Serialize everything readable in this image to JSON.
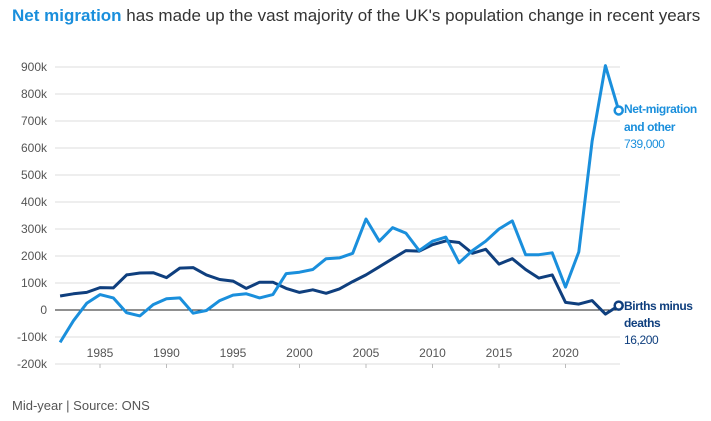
{
  "title": {
    "highlight": "Net migration",
    "rest": " has made up the vast majority of the UK's population change in recent years"
  },
  "footer": "Mid-year | Source: ONS",
  "colors": {
    "net_migration": "#1a8fdc",
    "births_minus_deaths": "#0f3f7e",
    "grid": "#dddddd",
    "zero": "#222222"
  },
  "chart_data": {
    "type": "line",
    "title": "",
    "xlabel": "",
    "ylabel": "",
    "xlim": [
      1982,
      2024
    ],
    "ylim": [
      -200000,
      900000
    ],
    "grid": true,
    "y_ticks": [
      -200000,
      -100000,
      0,
      100000,
      200000,
      300000,
      400000,
      500000,
      600000,
      700000,
      800000,
      900000
    ],
    "y_tick_labels": [
      "-200k",
      "-100k",
      "0",
      "100k",
      "200k",
      "300k",
      "400k",
      "500k",
      "600k",
      "700k",
      "800k",
      "900k"
    ],
    "x_ticks": [
      1985,
      1990,
      1995,
      2000,
      2005,
      2010,
      2015,
      2020
    ],
    "x_tick_labels": [
      "1985",
      "1990",
      "1995",
      "2000",
      "2005",
      "2010",
      "2015",
      "2020"
    ],
    "x": [
      1982,
      1983,
      1984,
      1985,
      1986,
      1987,
      1988,
      1989,
      1990,
      1991,
      1992,
      1993,
      1994,
      1995,
      1996,
      1997,
      1998,
      1999,
      2000,
      2001,
      2002,
      2003,
      2004,
      2005,
      2006,
      2007,
      2008,
      2009,
      2010,
      2011,
      2012,
      2013,
      2014,
      2015,
      2016,
      2017,
      2018,
      2019,
      2020,
      2021,
      2022,
      2023,
      2024
    ],
    "series": [
      {
        "name": "Net-migration and other",
        "end_label": "739,000",
        "values": [
          -120000,
          -40000,
          25000,
          57000,
          45000,
          -10000,
          -22000,
          20000,
          42000,
          45000,
          -12000,
          -2000,
          35000,
          55000,
          60000,
          45000,
          57000,
          135000,
          140000,
          150000,
          190000,
          193000,
          210000,
          337000,
          255000,
          305000,
          285000,
          220000,
          255000,
          270000,
          175000,
          220000,
          255000,
          300000,
          330000,
          205000,
          205000,
          212000,
          85000,
          215000,
          625000,
          905000,
          739000
        ]
      },
      {
        "name": "Births minus deaths",
        "end_label": "16,200",
        "values": [
          52000,
          60000,
          65000,
          83000,
          82000,
          130000,
          137000,
          138000,
          120000,
          155000,
          157000,
          130000,
          113000,
          107000,
          80000,
          103000,
          103000,
          80000,
          65000,
          75000,
          62000,
          78000,
          105000,
          130000,
          160000,
          190000,
          220000,
          218000,
          242000,
          256000,
          250000,
          210000,
          225000,
          170000,
          190000,
          150000,
          118000,
          130000,
          28000,
          22000,
          35000,
          -15000,
          16200
        ]
      }
    ]
  },
  "labels": {
    "net_line1": "Net-migration",
    "net_line2": "and other",
    "births_line1": "Births minus",
    "births_line2": "deaths"
  }
}
